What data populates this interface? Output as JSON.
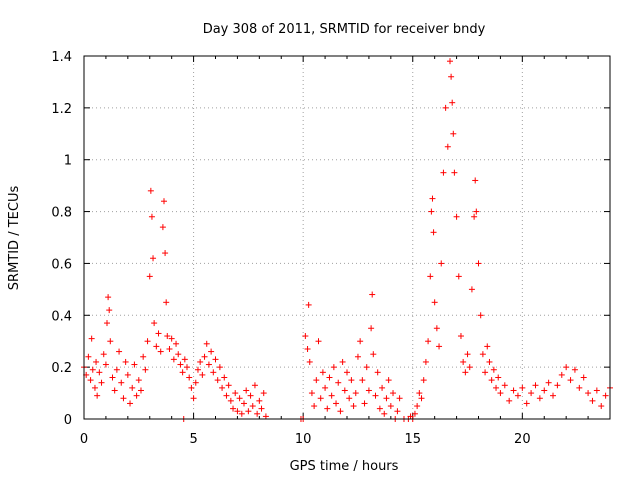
{
  "chart_data": {
    "type": "scatter",
    "title": "Day 308 of 2011, SRMTID for receiver bndy",
    "xlabel": "GPS time / hours",
    "ylabel": "SRMTID / TECUs",
    "xlim": [
      0,
      24
    ],
    "ylim": [
      0,
      1.4
    ],
    "xticks": [
      "0",
      "5",
      "10",
      "15",
      "20"
    ],
    "yticks": [
      "0",
      "0.2",
      "0.4",
      "0.6",
      "0.8",
      "1",
      "1.2",
      "1.4"
    ],
    "xtick_values": [
      0,
      5,
      10,
      15,
      20
    ],
    "ytick_values": [
      0,
      0.2,
      0.4,
      0.6,
      0.8,
      1.0,
      1.2,
      1.4
    ],
    "grid": true,
    "marker": "+",
    "color": "#ff0000",
    "series": [
      {
        "name": "SRMTID",
        "points": [
          [
            0.0,
            0.2
          ],
          [
            0.1,
            0.17
          ],
          [
            0.2,
            0.24
          ],
          [
            0.3,
            0.15
          ],
          [
            0.35,
            0.31
          ],
          [
            0.4,
            0.19
          ],
          [
            0.5,
            0.12
          ],
          [
            0.55,
            0.22
          ],
          [
            0.6,
            0.09
          ],
          [
            0.7,
            0.18
          ],
          [
            0.8,
            0.14
          ],
          [
            0.9,
            0.25
          ],
          [
            1.0,
            0.21
          ],
          [
            1.05,
            0.37
          ],
          [
            1.1,
            0.47
          ],
          [
            1.15,
            0.42
          ],
          [
            1.2,
            0.3
          ],
          [
            1.3,
            0.16
          ],
          [
            1.4,
            0.11
          ],
          [
            1.5,
            0.19
          ],
          [
            1.6,
            0.26
          ],
          [
            1.7,
            0.14
          ],
          [
            1.8,
            0.08
          ],
          [
            1.9,
            0.22
          ],
          [
            2.0,
            0.17
          ],
          [
            2.1,
            0.06
          ],
          [
            2.2,
            0.12
          ],
          [
            2.3,
            0.21
          ],
          [
            2.4,
            0.09
          ],
          [
            2.5,
            0.15
          ],
          [
            2.6,
            0.11
          ],
          [
            2.7,
            0.24
          ],
          [
            2.8,
            0.19
          ],
          [
            2.9,
            0.3
          ],
          [
            3.0,
            0.55
          ],
          [
            3.05,
            0.88
          ],
          [
            3.1,
            0.78
          ],
          [
            3.15,
            0.62
          ],
          [
            3.2,
            0.37
          ],
          [
            3.3,
            0.28
          ],
          [
            3.4,
            0.33
          ],
          [
            3.5,
            0.26
          ],
          [
            3.6,
            0.74
          ],
          [
            3.65,
            0.84
          ],
          [
            3.7,
            0.64
          ],
          [
            3.75,
            0.45
          ],
          [
            3.8,
            0.32
          ],
          [
            3.9,
            0.27
          ],
          [
            4.0,
            0.31
          ],
          [
            4.1,
            0.23
          ],
          [
            4.2,
            0.29
          ],
          [
            4.3,
            0.25
          ],
          [
            4.4,
            0.21
          ],
          [
            4.5,
            0.18
          ],
          [
            4.55,
            0.0
          ],
          [
            4.6,
            0.23
          ],
          [
            4.7,
            0.2
          ],
          [
            4.8,
            0.16
          ],
          [
            4.9,
            0.12
          ],
          [
            5.0,
            0.08
          ],
          [
            5.1,
            0.14
          ],
          [
            5.2,
            0.19
          ],
          [
            5.3,
            0.22
          ],
          [
            5.4,
            0.17
          ],
          [
            5.5,
            0.24
          ],
          [
            5.6,
            0.29
          ],
          [
            5.7,
            0.21
          ],
          [
            5.8,
            0.26
          ],
          [
            5.9,
            0.18
          ],
          [
            6.0,
            0.23
          ],
          [
            6.1,
            0.15
          ],
          [
            6.2,
            0.2
          ],
          [
            6.3,
            0.12
          ],
          [
            6.4,
            0.16
          ],
          [
            6.5,
            0.09
          ],
          [
            6.6,
            0.13
          ],
          [
            6.7,
            0.07
          ],
          [
            6.8,
            0.04
          ],
          [
            6.9,
            0.1
          ],
          [
            7.0,
            0.03
          ],
          [
            7.1,
            0.08
          ],
          [
            7.2,
            0.02
          ],
          [
            7.3,
            0.06
          ],
          [
            7.4,
            0.11
          ],
          [
            7.5,
            0.03
          ],
          [
            7.6,
            0.09
          ],
          [
            7.7,
            0.05
          ],
          [
            7.8,
            0.13
          ],
          [
            7.9,
            0.02
          ],
          [
            8.0,
            0.07
          ],
          [
            8.1,
            0.04
          ],
          [
            8.2,
            0.1
          ],
          [
            8.3,
            0.01
          ],
          [
            9.9,
            0.0
          ],
          [
            10.0,
            0.0
          ],
          [
            10.1,
            0.32
          ],
          [
            10.2,
            0.27
          ],
          [
            10.25,
            0.44
          ],
          [
            10.3,
            0.22
          ],
          [
            10.4,
            0.1
          ],
          [
            10.5,
            0.05
          ],
          [
            10.6,
            0.15
          ],
          [
            10.7,
            0.3
          ],
          [
            10.8,
            0.08
          ],
          [
            10.9,
            0.18
          ],
          [
            11.0,
            0.12
          ],
          [
            11.1,
            0.04
          ],
          [
            11.2,
            0.16
          ],
          [
            11.3,
            0.09
          ],
          [
            11.4,
            0.2
          ],
          [
            11.5,
            0.06
          ],
          [
            11.6,
            0.14
          ],
          [
            11.7,
            0.03
          ],
          [
            11.8,
            0.22
          ],
          [
            11.9,
            0.11
          ],
          [
            12.0,
            0.18
          ],
          [
            12.1,
            0.08
          ],
          [
            12.2,
            0.15
          ],
          [
            12.3,
            0.05
          ],
          [
            12.4,
            0.1
          ],
          [
            12.5,
            0.24
          ],
          [
            12.6,
            0.3
          ],
          [
            12.7,
            0.15
          ],
          [
            12.8,
            0.06
          ],
          [
            12.9,
            0.2
          ],
          [
            13.0,
            0.11
          ],
          [
            13.1,
            0.35
          ],
          [
            13.15,
            0.48
          ],
          [
            13.2,
            0.25
          ],
          [
            13.3,
            0.09
          ],
          [
            13.4,
            0.18
          ],
          [
            13.5,
            0.04
          ],
          [
            13.6,
            0.12
          ],
          [
            13.7,
            0.02
          ],
          [
            13.8,
            0.08
          ],
          [
            13.9,
            0.15
          ],
          [
            14.0,
            0.05
          ],
          [
            14.1,
            0.1
          ],
          [
            14.2,
            0.0
          ],
          [
            14.3,
            0.03
          ],
          [
            14.4,
            0.08
          ],
          [
            14.6,
            0.0
          ],
          [
            14.8,
            0.0
          ],
          [
            14.9,
            0.01
          ],
          [
            15.0,
            0.0
          ],
          [
            15.1,
            0.02
          ],
          [
            15.2,
            0.05
          ],
          [
            15.3,
            0.1
          ],
          [
            15.4,
            0.08
          ],
          [
            15.5,
            0.15
          ],
          [
            15.6,
            0.22
          ],
          [
            15.7,
            0.3
          ],
          [
            15.8,
            0.55
          ],
          [
            15.85,
            0.8
          ],
          [
            15.9,
            0.85
          ],
          [
            15.95,
            0.72
          ],
          [
            16.0,
            0.45
          ],
          [
            16.1,
            0.35
          ],
          [
            16.2,
            0.28
          ],
          [
            16.3,
            0.6
          ],
          [
            16.4,
            0.95
          ],
          [
            16.5,
            1.2
          ],
          [
            16.6,
            1.05
          ],
          [
            16.7,
            1.38
          ],
          [
            16.75,
            1.32
          ],
          [
            16.8,
            1.22
          ],
          [
            16.85,
            1.1
          ],
          [
            16.9,
            0.95
          ],
          [
            17.0,
            0.78
          ],
          [
            17.1,
            0.55
          ],
          [
            17.2,
            0.32
          ],
          [
            17.3,
            0.22
          ],
          [
            17.4,
            0.18
          ],
          [
            17.5,
            0.25
          ],
          [
            17.6,
            0.2
          ],
          [
            17.7,
            0.5
          ],
          [
            17.8,
            0.78
          ],
          [
            17.85,
            0.92
          ],
          [
            17.9,
            0.8
          ],
          [
            18.0,
            0.6
          ],
          [
            18.1,
            0.4
          ],
          [
            18.2,
            0.25
          ],
          [
            18.3,
            0.18
          ],
          [
            18.4,
            0.28
          ],
          [
            18.5,
            0.22
          ],
          [
            18.6,
            0.15
          ],
          [
            18.7,
            0.19
          ],
          [
            18.8,
            0.12
          ],
          [
            18.9,
            0.16
          ],
          [
            19.0,
            0.1
          ],
          [
            19.2,
            0.13
          ],
          [
            19.4,
            0.07
          ],
          [
            19.6,
            0.11
          ],
          [
            19.8,
            0.09
          ],
          [
            20.0,
            0.12
          ],
          [
            20.2,
            0.06
          ],
          [
            20.4,
            0.1
          ],
          [
            20.6,
            0.13
          ],
          [
            20.8,
            0.08
          ],
          [
            21.0,
            0.11
          ],
          [
            21.2,
            0.14
          ],
          [
            21.4,
            0.09
          ],
          [
            21.6,
            0.13
          ],
          [
            21.8,
            0.17
          ],
          [
            22.0,
            0.2
          ],
          [
            22.2,
            0.15
          ],
          [
            22.4,
            0.19
          ],
          [
            22.6,
            0.12
          ],
          [
            22.8,
            0.16
          ],
          [
            23.0,
            0.1
          ],
          [
            23.2,
            0.07
          ],
          [
            23.4,
            0.11
          ],
          [
            23.6,
            0.05
          ],
          [
            23.8,
            0.09
          ],
          [
            24.0,
            0.12
          ]
        ]
      }
    ]
  }
}
